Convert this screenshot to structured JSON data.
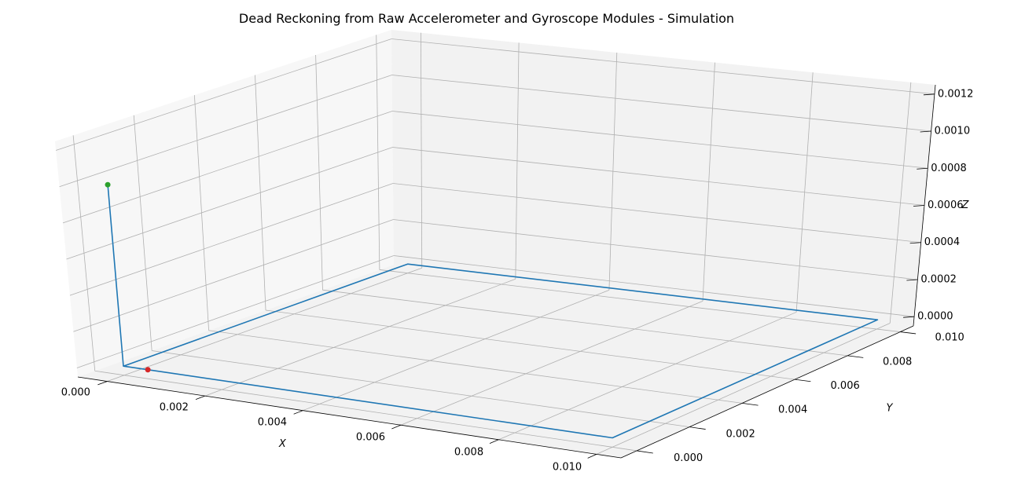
{
  "chart_data": {
    "type": "line",
    "projection": "3d",
    "title": "Dead Reckoning from Raw Accelerometer and Gyroscope Modules - Simulation",
    "xlabel": "X",
    "ylabel": "Y",
    "zlabel": "Z",
    "xlim": [
      -0.0006,
      0.0105
    ],
    "ylim": [
      -0.0006,
      0.0105
    ],
    "zlim": [
      -5e-05,
      0.00125
    ],
    "xticks": [
      "0.000",
      "0.002",
      "0.004",
      "0.006",
      "0.008",
      "0.010"
    ],
    "yticks": [
      "0.000",
      "0.002",
      "0.004",
      "0.006",
      "0.008",
      "0.010"
    ],
    "zticks": [
      "0.0000",
      "0.0002",
      "0.0004",
      "0.0006",
      "0.0008",
      "0.0010",
      "0.0012"
    ],
    "grid": true,
    "series": [
      {
        "color": "#1f77b4",
        "points": [
          {
            "x": 0.0,
            "y": 0.0,
            "z": 0.001
          },
          {
            "x": 0.0,
            "y": 0.0,
            "z": 0.0
          },
          {
            "x": 0.01,
            "y": 0.0,
            "z": 0.0
          },
          {
            "x": 0.01,
            "y": 0.01,
            "z": 0.0
          },
          {
            "x": 0.0,
            "y": 0.01,
            "z": 0.0
          },
          {
            "x": 0.0,
            "y": 0.0,
            "z": 0.0
          }
        ]
      }
    ],
    "markers": [
      {
        "name": "start",
        "x": 0.0,
        "y": 0.0,
        "z": 0.001,
        "color": "#2ca02c"
      },
      {
        "name": "end",
        "x": 0.0005,
        "y": 0.0,
        "z": 0.0,
        "color": "#d62728"
      }
    ]
  }
}
